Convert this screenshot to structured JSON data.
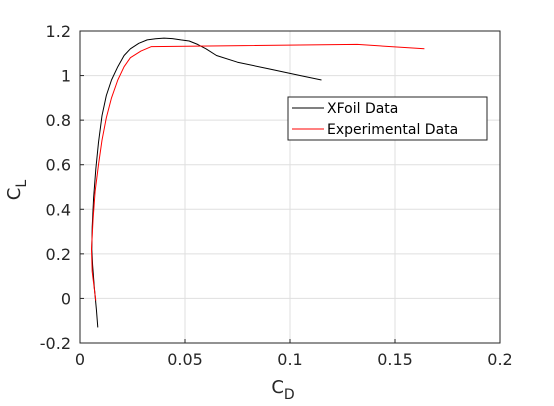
{
  "chart_data": {
    "type": "line",
    "xlabel": "C",
    "xlabel_sub": "D",
    "ylabel": "C",
    "ylabel_sub": "L",
    "xlim": [
      0,
      0.2
    ],
    "ylim": [
      -0.2,
      1.2
    ],
    "xticks": [
      0,
      0.05,
      0.1,
      0.15,
      0.2
    ],
    "xtick_labels": [
      "0",
      "0.05",
      "0.1",
      "0.15",
      "0.2"
    ],
    "yticks": [
      -0.2,
      0,
      0.2,
      0.4,
      0.6,
      0.8,
      1,
      1.2
    ],
    "ytick_labels": [
      "-0.2",
      "0",
      "0.2",
      "0.4",
      "0.6",
      "0.8",
      "1",
      "1.2"
    ],
    "grid": true,
    "legend_position": "right-middle",
    "series": [
      {
        "name": "XFoil Data",
        "color": "#000000",
        "x": [
          0.0085,
          0.0078,
          0.0068,
          0.006,
          0.0056,
          0.0058,
          0.0065,
          0.0075,
          0.0088,
          0.0105,
          0.0125,
          0.015,
          0.018,
          0.021,
          0.024,
          0.028,
          0.032,
          0.036,
          0.04,
          0.044,
          0.048,
          0.052,
          0.056,
          0.06,
          0.065,
          0.075,
          0.09,
          0.105,
          0.115
        ],
        "y": [
          -0.13,
          -0.05,
          0.05,
          0.15,
          0.22,
          0.32,
          0.45,
          0.58,
          0.7,
          0.82,
          0.91,
          0.98,
          1.04,
          1.09,
          1.12,
          1.145,
          1.16,
          1.165,
          1.168,
          1.166,
          1.16,
          1.155,
          1.14,
          1.12,
          1.09,
          1.06,
          1.03,
          1.0,
          0.98
        ]
      },
      {
        "name": "Experimental Data",
        "color": "#ff0000",
        "x": [
          0.0075,
          0.0058,
          0.0055,
          0.0062,
          0.0072,
          0.0088,
          0.0105,
          0.0125,
          0.015,
          0.018,
          0.021,
          0.024,
          0.029,
          0.034,
          0.132,
          0.164
        ],
        "y": [
          -0.01,
          0.12,
          0.22,
          0.35,
          0.48,
          0.6,
          0.71,
          0.81,
          0.9,
          0.98,
          1.04,
          1.08,
          1.11,
          1.13,
          1.14,
          1.12
        ]
      }
    ]
  }
}
